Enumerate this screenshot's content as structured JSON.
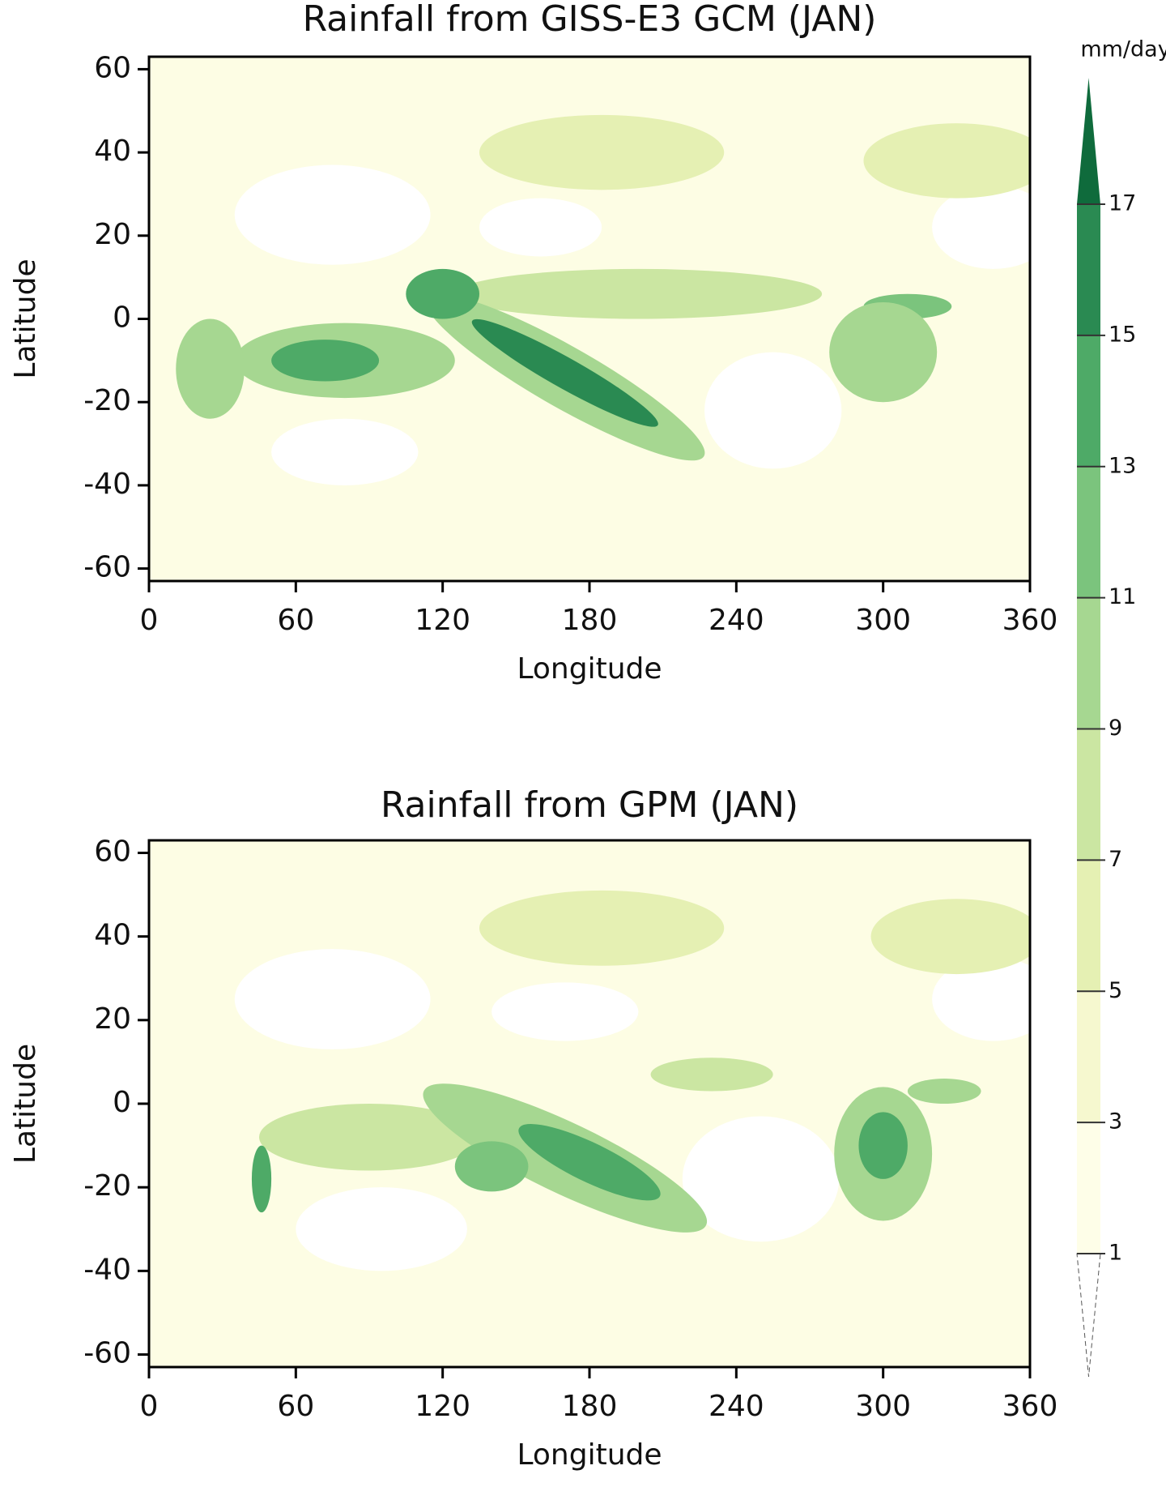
{
  "chart_data": [
    {
      "type": "contour-map",
      "title": "Rainfall from GISS-E3 GCM (JAN)",
      "xlabel": "Longitude",
      "ylabel": "Latitude",
      "xlim": [
        0,
        360
      ],
      "xticks": [
        0,
        60,
        120,
        180,
        240,
        300,
        360
      ],
      "ylim": [
        -63,
        63
      ],
      "yticks": [
        -60,
        -40,
        -20,
        0,
        20,
        40,
        60
      ]
    },
    {
      "type": "contour-map",
      "title": "Rainfall from GPM (JAN)",
      "xlabel": "Longitude",
      "ylabel": "Latitude",
      "xlim": [
        0,
        360
      ],
      "xticks": [
        0,
        60,
        120,
        180,
        240,
        300,
        360
      ],
      "ylim": [
        -63,
        63
      ],
      "yticks": [
        -60,
        -40,
        -20,
        0,
        20,
        40,
        60
      ]
    }
  ],
  "colorbar": {
    "unit": "mm/day",
    "levels": [
      1,
      3,
      5,
      7,
      9,
      11,
      13,
      15,
      17
    ],
    "colors": [
      "#ffffff",
      "#fefee8",
      "#f6f8cf",
      "#e5f0b3",
      "#cbe6a2",
      "#a6d791",
      "#7bc47d",
      "#4eaa67",
      "#2a8a52",
      "#0f6b3c"
    ]
  }
}
